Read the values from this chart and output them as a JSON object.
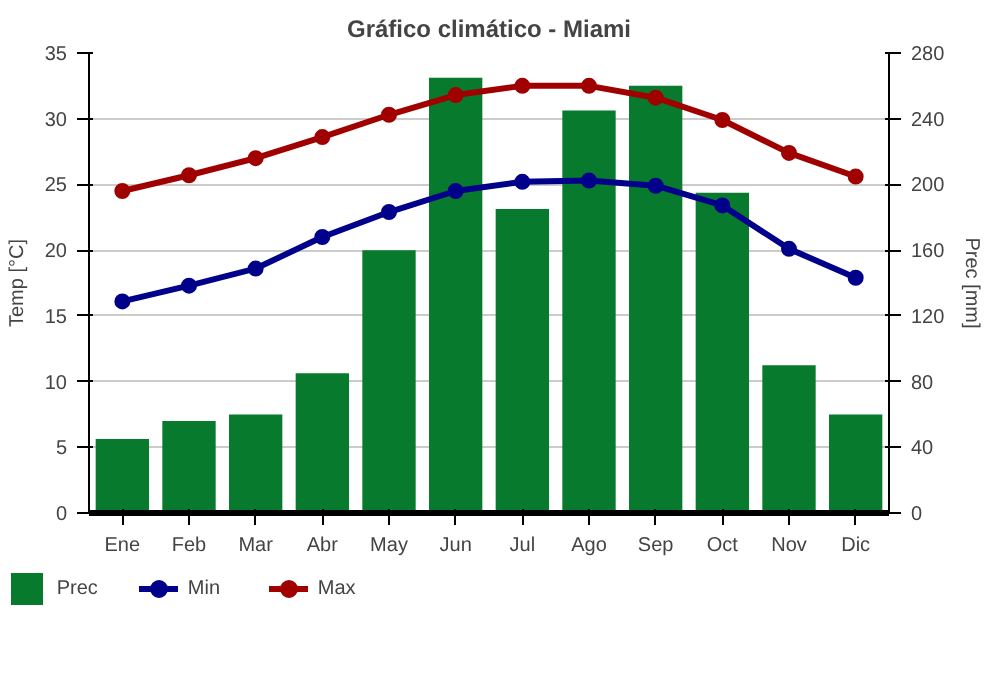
{
  "chart_data": {
    "type": "line",
    "title": "Gráfico climático - Miami",
    "ylabel": "Temp [°C]",
    "y2label": "Prec [mm]",
    "categories": [
      "Ene",
      "Feb",
      "Mar",
      "Abr",
      "May",
      "Jun",
      "Jul",
      "Ago",
      "Sep",
      "Oct",
      "Nov",
      "Dic"
    ],
    "series": [
      {
        "name": "Prec",
        "type": "bar",
        "axis": "y2",
        "color": "#087a2e",
        "values": [
          45,
          56,
          60,
          85,
          160,
          265,
          185,
          245,
          260,
          195,
          90,
          60
        ]
      },
      {
        "name": "Min",
        "color": "#00008b",
        "values": [
          16.1,
          17.3,
          18.6,
          21.0,
          22.9,
          24.5,
          25.2,
          25.3,
          24.9,
          23.4,
          20.1,
          17.9
        ]
      },
      {
        "name": "Max",
        "color": "#a00000",
        "values": [
          24.5,
          25.7,
          27.0,
          28.6,
          30.3,
          31.8,
          32.5,
          32.5,
          31.6,
          29.9,
          27.4,
          25.6
        ]
      }
    ],
    "ylim": [
      0,
      35
    ],
    "yticks": [
      0,
      5,
      10,
      15,
      20,
      25,
      30,
      35
    ],
    "y2lim": [
      0,
      280
    ],
    "y2ticks": [
      0,
      40,
      80,
      120,
      160,
      200,
      240,
      280
    ],
    "grid": "y",
    "legend": "bottom",
    "marker": "circle",
    "line_style": "solid"
  }
}
